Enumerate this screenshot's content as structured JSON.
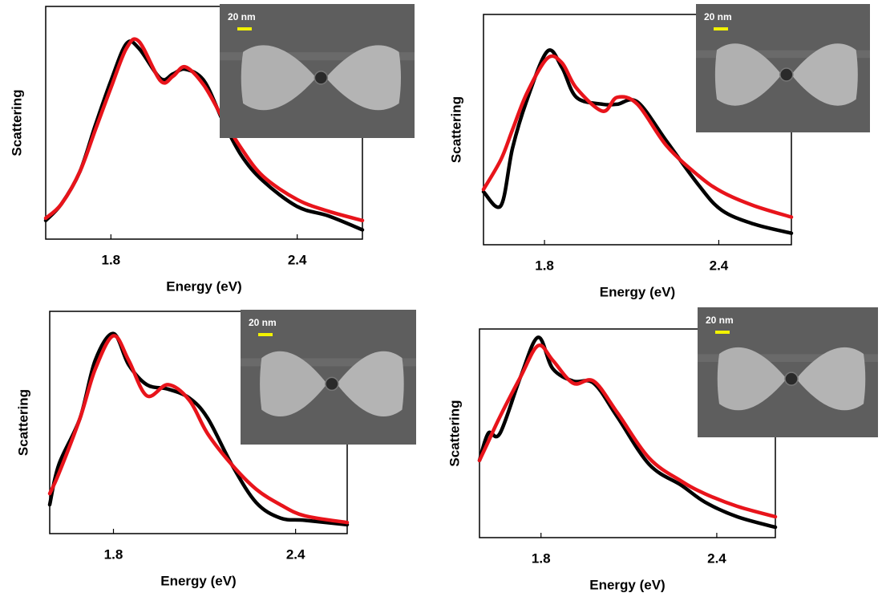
{
  "chart_data": [
    {
      "type": "line",
      "ylabel": "Scattering",
      "xlabel": "Energy (eV)",
      "inset_label": "20 nm",
      "x": [
        1.59,
        1.64,
        1.7,
        1.75,
        1.8,
        1.85,
        1.89,
        1.96,
        2.0,
        2.04,
        2.1,
        2.16,
        2.22,
        2.29,
        2.4,
        2.5,
        2.61
      ],
      "series": [
        {
          "color": "#000000",
          "values": [
            0.08,
            0.15,
            0.29,
            0.49,
            0.68,
            0.84,
            0.82,
            0.69,
            0.71,
            0.73,
            0.68,
            0.51,
            0.36,
            0.25,
            0.14,
            0.1,
            0.04
          ]
        },
        {
          "color": "#e8141b",
          "values": [
            0.09,
            0.15,
            0.29,
            0.47,
            0.65,
            0.82,
            0.85,
            0.68,
            0.7,
            0.74,
            0.66,
            0.52,
            0.39,
            0.27,
            0.17,
            0.12,
            0.08
          ]
        }
      ],
      "xlim": [
        1.59,
        2.61
      ],
      "xticks": [
        1.8,
        2.4
      ],
      "ylim": [
        0,
        1
      ]
    },
    {
      "type": "line",
      "ylabel": "Scattering",
      "xlabel": "Energy (eV)",
      "inset_label": "20 nm",
      "x": [
        1.59,
        1.65,
        1.69,
        1.74,
        1.81,
        1.86,
        1.91,
        2.0,
        2.05,
        2.12,
        2.22,
        2.33,
        2.41,
        2.52,
        2.65
      ],
      "series": [
        {
          "color": "#000000",
          "values": [
            0.23,
            0.17,
            0.42,
            0.63,
            0.84,
            0.77,
            0.64,
            0.61,
            0.61,
            0.62,
            0.45,
            0.26,
            0.15,
            0.09,
            0.05
          ]
        },
        {
          "color": "#e8141b",
          "values": [
            0.24,
            0.37,
            0.5,
            0.66,
            0.81,
            0.79,
            0.68,
            0.58,
            0.64,
            0.61,
            0.43,
            0.3,
            0.23,
            0.17,
            0.12
          ]
        }
      ],
      "xlim": [
        1.59,
        2.65
      ],
      "xticks": [
        1.8,
        2.4
      ],
      "ylim": [
        0,
        1
      ]
    },
    {
      "type": "line",
      "ylabel": "Scattering",
      "xlabel": "Energy (eV)",
      "inset_label": "20 nm",
      "x": [
        1.59,
        1.62,
        1.69,
        1.74,
        1.8,
        1.85,
        1.91,
        1.98,
        2.05,
        2.11,
        2.19,
        2.27,
        2.35,
        2.43,
        2.57
      ],
      "series": [
        {
          "color": "#000000",
          "values": [
            0.13,
            0.31,
            0.52,
            0.78,
            0.9,
            0.76,
            0.67,
            0.65,
            0.61,
            0.52,
            0.31,
            0.14,
            0.07,
            0.06,
            0.04
          ]
        },
        {
          "color": "#e8141b",
          "values": [
            0.18,
            0.27,
            0.52,
            0.74,
            0.89,
            0.78,
            0.62,
            0.67,
            0.6,
            0.45,
            0.31,
            0.2,
            0.13,
            0.08,
            0.05
          ]
        }
      ],
      "xlim": [
        1.59,
        2.57
      ],
      "xticks": [
        1.8,
        2.4
      ],
      "ylim": [
        0,
        1
      ]
    },
    {
      "type": "line",
      "ylabel": "Scattering",
      "xlabel": "Energy (eV)",
      "inset_label": "20 nm",
      "x": [
        1.59,
        1.62,
        1.66,
        1.73,
        1.79,
        1.84,
        1.91,
        1.98,
        2.06,
        2.17,
        2.28,
        2.36,
        2.47,
        2.6
      ],
      "series": [
        {
          "color": "#000000",
          "values": [
            0.37,
            0.5,
            0.5,
            0.77,
            0.96,
            0.81,
            0.75,
            0.74,
            0.58,
            0.35,
            0.25,
            0.17,
            0.1,
            0.05
          ]
        },
        {
          "color": "#e8141b",
          "values": [
            0.37,
            0.46,
            0.58,
            0.77,
            0.92,
            0.85,
            0.74,
            0.75,
            0.6,
            0.38,
            0.27,
            0.21,
            0.15,
            0.1
          ]
        }
      ],
      "xlim": [
        1.59,
        2.6
      ],
      "xticks": [
        1.8,
        2.4
      ],
      "ylim": [
        0,
        1
      ]
    }
  ]
}
